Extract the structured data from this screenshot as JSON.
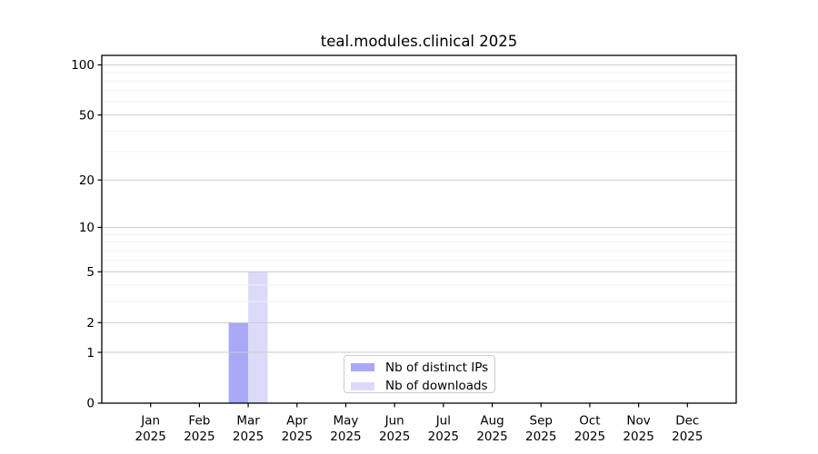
{
  "chart_data": {
    "type": "bar",
    "title": "teal.modules.clinical 2025",
    "categories": [
      "Jan 2025",
      "Feb 2025",
      "Mar 2025",
      "Apr 2025",
      "May 2025",
      "Jun 2025",
      "Jul 2025",
      "Aug 2025",
      "Sep 2025",
      "Oct 2025",
      "Nov 2025",
      "Dec 2025"
    ],
    "x_ticks": {
      "months": [
        "Jan",
        "Feb",
        "Mar",
        "Apr",
        "May",
        "Jun",
        "Jul",
        "Aug",
        "Sep",
        "Oct",
        "Nov",
        "Dec"
      ],
      "year": "2025"
    },
    "series": [
      {
        "name": "Nb of distinct IPs",
        "color": "#a8a8f6",
        "values": [
          0,
          0,
          2,
          0,
          0,
          0,
          0,
          0,
          0,
          0,
          0,
          0
        ]
      },
      {
        "name": "Nb of downloads",
        "color": "#dbdbf9",
        "values": [
          0,
          0,
          5,
          0,
          0,
          0,
          0,
          0,
          0,
          0,
          0,
          0
        ]
      }
    ],
    "y_scale": "log1p",
    "ylim": [
      0,
      114
    ],
    "y_major_ticks": [
      0,
      1,
      2,
      5,
      10,
      20,
      50,
      100
    ],
    "y_minor_gridlines": [
      3,
      4,
      6,
      7,
      8,
      9,
      30,
      40,
      60,
      70,
      80,
      90
    ],
    "grid": true,
    "legend_position": "lower center",
    "colors": {
      "axis": "#000000",
      "text": "#000000",
      "grid_major": "#cdcdcd",
      "grid_minor": "#f0f0f0",
      "legend_border": "#cbcbcb"
    }
  }
}
